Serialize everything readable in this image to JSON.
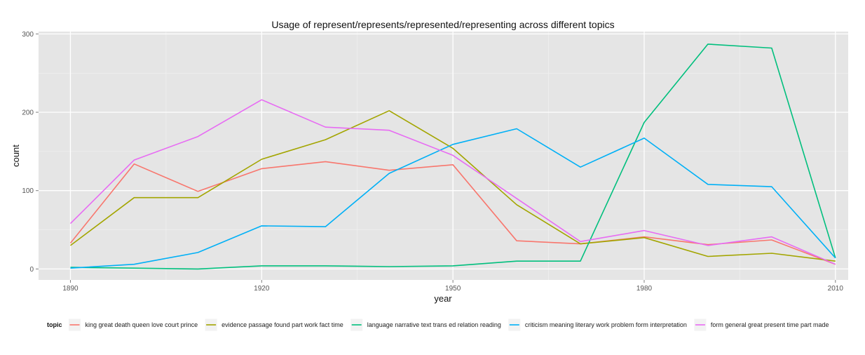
{
  "chart_data": {
    "type": "line",
    "title": "Usage of represent/represents/represented/representing across different topics",
    "xlabel": "year",
    "ylabel": "count",
    "xlim": [
      1885,
      2012
    ],
    "ylim": [
      -14,
      303
    ],
    "x_ticks": [
      1890,
      1920,
      1950,
      1980,
      2010
    ],
    "y_ticks": [
      0,
      100,
      200,
      300
    ],
    "x_tick_labels": [
      "1890",
      "1920",
      "1950",
      "1980",
      "2010"
    ],
    "y_tick_labels": [
      "0",
      "100",
      "200",
      "300"
    ],
    "grid": true,
    "legend": {
      "title": "topic",
      "position": "bottom"
    },
    "x": [
      1890,
      1900,
      1910,
      1920,
      1930,
      1940,
      1950,
      1960,
      1970,
      1980,
      1990,
      2000,
      2010
    ],
    "series": [
      {
        "name": "king great death queen love court prince",
        "color": "#F8766D",
        "values": [
          33,
          134,
          99,
          128,
          137,
          126,
          133,
          36,
          32,
          41,
          31,
          37,
          6
        ]
      },
      {
        "name": "evidence passage found part work fact time",
        "color": "#A3A500",
        "values": [
          30,
          91,
          91,
          140,
          165,
          202,
          154,
          82,
          32,
          40,
          16,
          20,
          10
        ]
      },
      {
        "name": "language narrative text trans ed relation reading",
        "color": "#00BF7D",
        "values": [
          2,
          1,
          0,
          4,
          4,
          3,
          4,
          10,
          10,
          187,
          287,
          282,
          14
        ]
      },
      {
        "name": "criticism meaning literary work problem form interpretation",
        "color": "#00B0F6",
        "values": [
          1,
          6,
          21,
          55,
          54,
          122,
          159,
          179,
          130,
          167,
          108,
          105,
          14
        ]
      },
      {
        "name": "form general great present time part made",
        "color": "#E76BF3",
        "values": [
          58,
          139,
          169,
          216,
          181,
          177,
          145,
          90,
          35,
          49,
          30,
          41,
          6
        ]
      }
    ]
  }
}
